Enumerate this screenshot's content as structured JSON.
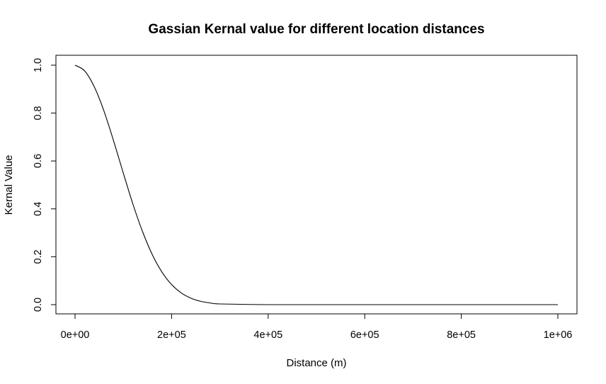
{
  "chart_data": {
    "type": "line",
    "title": "Gassian Kernal value for different location distances",
    "xlabel": "Distance (m)",
    "ylabel": "Kernal Value",
    "xlim": [
      0,
      1000000
    ],
    "ylim": [
      0,
      1
    ],
    "x_ticks": [
      {
        "value": 0,
        "label": "0e+00"
      },
      {
        "value": 200000,
        "label": "2e+05"
      },
      {
        "value": 400000,
        "label": "4e+05"
      },
      {
        "value": 600000,
        "label": "6e+05"
      },
      {
        "value": 800000,
        "label": "8e+05"
      },
      {
        "value": 1000000,
        "label": "1e+06"
      }
    ],
    "y_ticks": [
      {
        "value": 0,
        "label": "0.0"
      },
      {
        "value": 0.2,
        "label": "0.2"
      },
      {
        "value": 0.4,
        "label": "0.4"
      },
      {
        "value": 0.6,
        "label": "0.6"
      },
      {
        "value": 0.8,
        "label": "0.8"
      },
      {
        "value": 1.0,
        "label": "1.0"
      }
    ],
    "grid": false,
    "legend": "none",
    "series": [
      {
        "color": "#000000",
        "x": [
          0,
          20000,
          40000,
          60000,
          80000,
          100000,
          120000,
          140000,
          160000,
          180000,
          200000,
          220000,
          240000,
          260000,
          280000,
          300000,
          400000,
          500000,
          600000,
          700000,
          800000,
          900000,
          1000000
        ],
        "y": [
          1.0,
          0.976,
          0.909,
          0.808,
          0.683,
          0.549,
          0.419,
          0.304,
          0.209,
          0.136,
          0.084,
          0.049,
          0.027,
          0.014,
          0.007,
          0.003,
          0.0,
          0.0,
          0.0,
          0.0,
          0.0,
          0.0,
          0.0
        ]
      }
    ]
  }
}
